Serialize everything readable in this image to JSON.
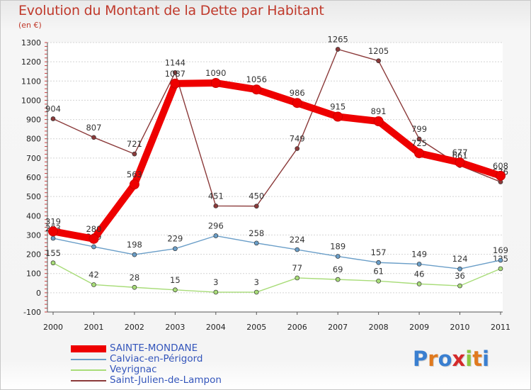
{
  "header": {
    "title": "Evolution du Montant de la Dette par Habitant",
    "subtitle": "(en €)"
  },
  "chart_data": {
    "type": "line",
    "title": "Evolution du Montant de la Dette par Habitant",
    "subtitle": "(en €)",
    "xlabel": "",
    "ylabel": "",
    "ylim": [
      -100,
      1300
    ],
    "yticks": [
      -100,
      0,
      100,
      200,
      300,
      400,
      500,
      600,
      700,
      800,
      900,
      1000,
      1100,
      1200,
      1300
    ],
    "categories": [
      "2000",
      "2001",
      "2002",
      "2003",
      "2004",
      "2005",
      "2006",
      "2007",
      "2008",
      "2009",
      "2010",
      "2011"
    ],
    "grid": "horizontal",
    "legend": "bottom-left",
    "series": [
      {
        "name": "Saint-Julien-de-Lampon",
        "color": "#8b3a3a",
        "values": [
          904,
          807,
          721,
          1144,
          451,
          450,
          749,
          1265,
          1205,
          799,
          661,
          576
        ]
      },
      {
        "name": "Veyrignac",
        "color": "#a8dc78",
        "values": [
          155,
          42,
          28,
          15,
          3,
          3,
          77,
          69,
          61,
          46,
          36,
          125
        ]
      },
      {
        "name": "Calviac-en-Périgord",
        "color": "#6a9ec8",
        "values": [
          283,
          239,
          198,
          229,
          296,
          258,
          224,
          189,
          157,
          149,
          124,
          169
        ]
      },
      {
        "name": "SAINTE-MONDANE",
        "color": "#ee0000",
        "values": [
          319,
          280,
          563,
          1087,
          1090,
          1056,
          986,
          915,
          891,
          725,
          677,
          608
        ]
      }
    ]
  },
  "legend": {
    "items": [
      {
        "label": "SAINTE-MONDANE",
        "color": "#ee0000"
      },
      {
        "label": "Calviac-en-Périgord",
        "color": "#6a9ec8"
      },
      {
        "label": "Veyrignac",
        "color": "#a8dc78"
      },
      {
        "label": "Saint-Julien-de-Lampon",
        "color": "#8b3a3a"
      }
    ]
  },
  "logo": {
    "text": "Proxiti"
  }
}
